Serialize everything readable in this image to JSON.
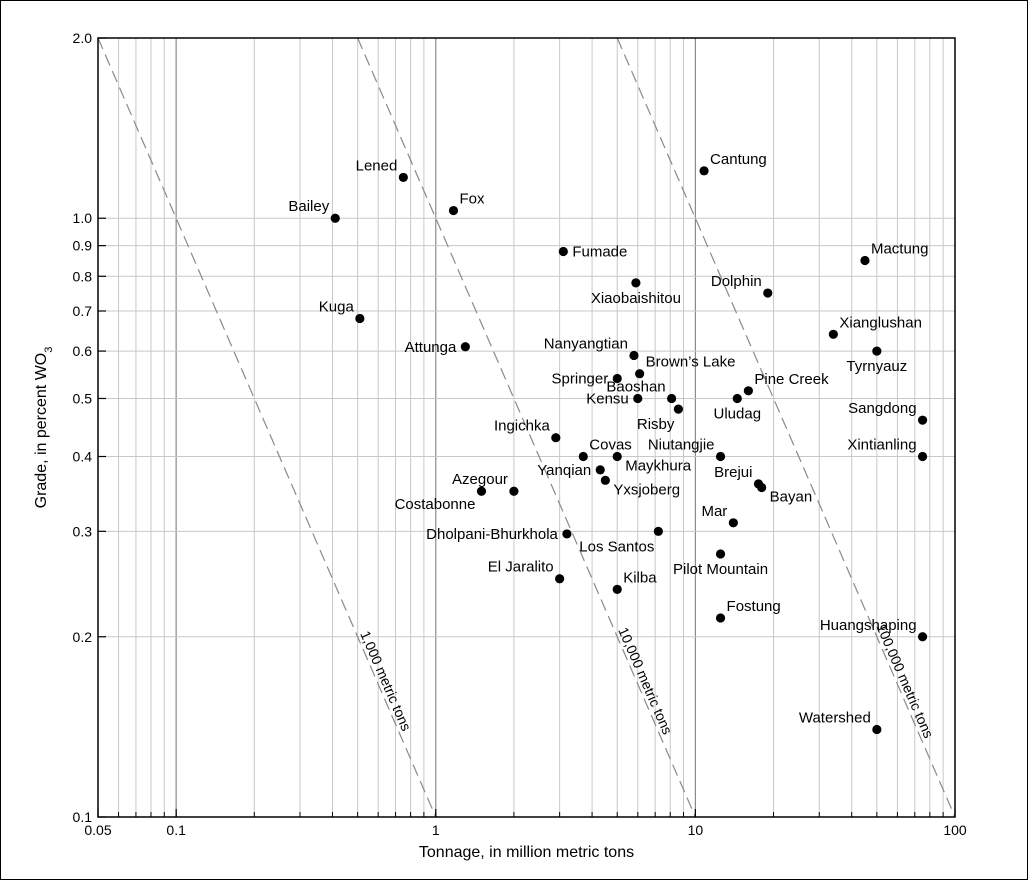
{
  "chart_data": {
    "type": "scatter",
    "xlabel": "Tonnage, in million metric tons",
    "ylabel_main": "Grade, in percent WO",
    "ylabel_sub": "3",
    "x_scale": "log",
    "y_scale": "log",
    "xlim": [
      0.05,
      100
    ],
    "ylim": [
      0.1,
      2.0
    ],
    "x_ticks": [
      {
        "value": 0.05,
        "label": "0.05"
      },
      {
        "value": 0.1,
        "label": "0.1"
      },
      {
        "value": 1,
        "label": "1"
      },
      {
        "value": 10,
        "label": "10"
      },
      {
        "value": 100,
        "label": "100"
      }
    ],
    "y_ticks": [
      {
        "value": 0.1,
        "label": "0.1"
      },
      {
        "value": 0.2,
        "label": "0.2"
      },
      {
        "value": 0.3,
        "label": "0.3"
      },
      {
        "value": 0.4,
        "label": "0.4"
      },
      {
        "value": 0.5,
        "label": "0.5"
      },
      {
        "value": 0.6,
        "label": "0.6"
      },
      {
        "value": 0.7,
        "label": "0.7"
      },
      {
        "value": 0.8,
        "label": "0.8"
      },
      {
        "value": 0.9,
        "label": "0.9"
      },
      {
        "value": 1.0,
        "label": "1.0"
      },
      {
        "value": 2.0,
        "label": "2.0"
      }
    ],
    "grid": true,
    "reference_lines": [
      {
        "label": "1,000 metric tons",
        "tonnage_metric_tons": 1000
      },
      {
        "label": "10,000 metric tons",
        "tonnage_metric_tons": 10000
      },
      {
        "label": "100,000 metric tons",
        "tonnage_metric_tons": 100000
      }
    ],
    "points": [
      {
        "name": "Cantung",
        "x": 10.8,
        "y": 1.2,
        "label_pos": "upper-right"
      },
      {
        "name": "Lened",
        "x": 0.75,
        "y": 1.17,
        "label_pos": "upper-left"
      },
      {
        "name": "Fox",
        "x": 1.17,
        "y": 1.03,
        "label_pos": "upper-right"
      },
      {
        "name": "Bailey",
        "x": 0.41,
        "y": 1.0,
        "label_pos": "upper-left"
      },
      {
        "name": "Fumade",
        "x": 3.1,
        "y": 0.88,
        "label_pos": "right"
      },
      {
        "name": "Mactung",
        "x": 45,
        "y": 0.85,
        "label_pos": "upper-right"
      },
      {
        "name": "Xiaobaishitou",
        "x": 5.9,
        "y": 0.78,
        "label_pos": "below"
      },
      {
        "name": "Dolphin",
        "x": 19,
        "y": 0.75,
        "label_pos": "upper-left"
      },
      {
        "name": "Kuga",
        "x": 0.51,
        "y": 0.68,
        "label_pos": "upper-left"
      },
      {
        "name": "Xianglushan",
        "x": 34,
        "y": 0.64,
        "label_pos": "upper-right"
      },
      {
        "name": "Attunga",
        "x": 1.3,
        "y": 0.61,
        "label_pos": "left"
      },
      {
        "name": "Tyrnyauz",
        "x": 50,
        "y": 0.6,
        "label_pos": "below"
      },
      {
        "name": "Nanyangtian",
        "x": 5.8,
        "y": 0.59,
        "label_pos": "upper-left"
      },
      {
        "name": "Brown’s Lake",
        "x": 6.1,
        "y": 0.55,
        "label_pos": "upper-right"
      },
      {
        "name": "Springer",
        "x": 5.0,
        "y": 0.54,
        "label_pos": "left"
      },
      {
        "name": "Pine Creek",
        "x": 16,
        "y": 0.515,
        "label_pos": "upper-right"
      },
      {
        "name": "Kensu",
        "x": 6.0,
        "y": 0.5,
        "label_pos": "left"
      },
      {
        "name": "Baoshan",
        "x": 8.1,
        "y": 0.5,
        "label_pos": "upper-left"
      },
      {
        "name": "Uludag",
        "x": 14.5,
        "y": 0.5,
        "label_pos": "below"
      },
      {
        "name": "Sangdong",
        "x": 75,
        "y": 0.46,
        "label_pos": "upper-left"
      },
      {
        "name": "Risby",
        "x": 8.6,
        "y": 0.48,
        "label_pos": "below-left"
      },
      {
        "name": "Ingichka",
        "x": 2.9,
        "y": 0.43,
        "label_pos": "upper-left"
      },
      {
        "name": "Covas",
        "x": 3.7,
        "y": 0.4,
        "label_pos": "upper-right"
      },
      {
        "name": "Maykhura",
        "x": 5.0,
        "y": 0.4,
        "label_pos": "lower-right"
      },
      {
        "name": "Niutangjie",
        "x": 12.5,
        "y": 0.4,
        "label_pos": "upper-left"
      },
      {
        "name": "Xintianling",
        "x": 75,
        "y": 0.4,
        "label_pos": "upper-left"
      },
      {
        "name": "Yanqian",
        "x": 4.3,
        "y": 0.38,
        "label_pos": "left"
      },
      {
        "name": "Yxsjoberg",
        "x": 4.5,
        "y": 0.365,
        "label_pos": "lower-right"
      },
      {
        "name": "Brejui",
        "x": 17.5,
        "y": 0.36,
        "label_pos": "upper-left"
      },
      {
        "name": "Bayan",
        "x": 18,
        "y": 0.355,
        "label_pos": "lower-right"
      },
      {
        "name": "Azegour",
        "x": 2.0,
        "y": 0.35,
        "label_pos": "upper-left"
      },
      {
        "name": "Costabonne",
        "x": 1.5,
        "y": 0.35,
        "label_pos": "lower-left"
      },
      {
        "name": "Mar",
        "x": 14,
        "y": 0.31,
        "label_pos": "upper-left"
      },
      {
        "name": "Los Santos",
        "x": 7.2,
        "y": 0.3,
        "label_pos": "below-left"
      },
      {
        "name": "Dholpani-Bhurkhola",
        "x": 3.2,
        "y": 0.297,
        "label_pos": "left"
      },
      {
        "name": "Pilot Mountain",
        "x": 12.5,
        "y": 0.275,
        "label_pos": "below"
      },
      {
        "name": "El Jaralito",
        "x": 3.0,
        "y": 0.25,
        "label_pos": "upper-left"
      },
      {
        "name": "Kilba",
        "x": 5.0,
        "y": 0.24,
        "label_pos": "upper-right"
      },
      {
        "name": "Fostung",
        "x": 12.5,
        "y": 0.215,
        "label_pos": "upper-right"
      },
      {
        "name": "Huangshaping",
        "x": 75,
        "y": 0.2,
        "label_pos": "upper-left"
      },
      {
        "name": "Watershed",
        "x": 50,
        "y": 0.14,
        "label_pos": "upper-left"
      }
    ]
  }
}
